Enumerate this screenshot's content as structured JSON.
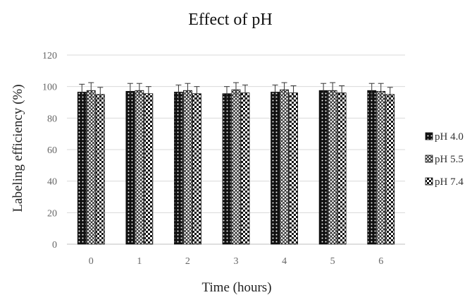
{
  "chart_data": {
    "type": "bar",
    "title": "Effect of pH",
    "xlabel": "Time (hours)",
    "ylabel": "Labeling efficiency (%)",
    "categories": [
      "0",
      "1",
      "2",
      "3",
      "4",
      "5",
      "6"
    ],
    "ylim": [
      0,
      120
    ],
    "yticks": [
      0,
      20,
      40,
      60,
      80,
      100,
      120
    ],
    "grid": true,
    "legend_position": "right",
    "series": [
      {
        "name": "pH 4.0",
        "values": [
          96.5,
          97,
          96.5,
          95.5,
          96.5,
          97.5,
          97.5
        ],
        "errors": [
          5,
          5,
          4.5,
          4.5,
          4.5,
          4.5,
          4.5
        ],
        "pattern": "dots",
        "color": "#111111"
      },
      {
        "name": "pH 5.5",
        "values": [
          97.5,
          97.5,
          97.5,
          98,
          98,
          97.5,
          97
        ],
        "errors": [
          5,
          4.5,
          4.5,
          4.5,
          4.5,
          5,
          5
        ],
        "pattern": "crosshatch",
        "color": "#444444"
      },
      {
        "name": "pH 7.4",
        "values": [
          95,
          95.5,
          95.5,
          96,
          96,
          96,
          95
        ],
        "errors": [
          4.5,
          4.5,
          4.5,
          5,
          4.5,
          4.5,
          4.5
        ],
        "pattern": "checker",
        "color": "#111111"
      }
    ]
  }
}
